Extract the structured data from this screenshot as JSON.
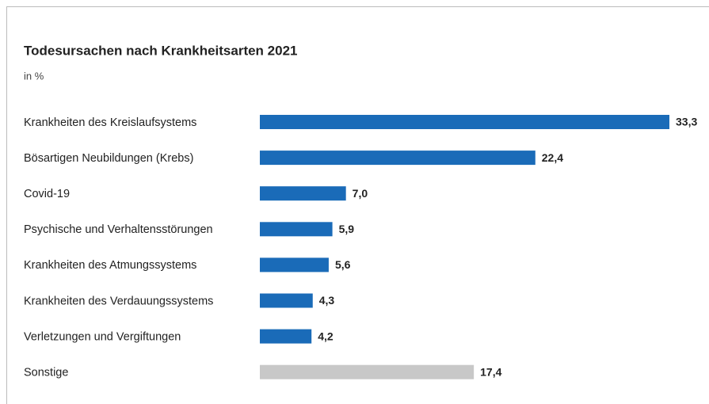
{
  "chart_data": {
    "type": "bar",
    "orientation": "horizontal",
    "title": "Todesursachen nach Krankheitsarten 2021",
    "subtitle": "in %",
    "categories": [
      "Krankheiten des Kreislaufsystems",
      "Bösartigen Neubildungen (Krebs)",
      "Covid-19",
      "Psychische und Verhaltensstörungen",
      "Krankheiten des Atmungssystems",
      "Krankheiten des Verdauungssystems",
      "Verletzungen und Vergiftungen",
      "Sonstige"
    ],
    "values": [
      33.3,
      22.4,
      7.0,
      5.9,
      5.6,
      4.3,
      4.2,
      17.4
    ],
    "value_labels": [
      "33,3",
      "22,4",
      "7,0",
      "5,9",
      "5,6",
      "4,3",
      "4,2",
      "17,4"
    ],
    "colors": [
      "#1a6bb8",
      "#1a6bb8",
      "#1a6bb8",
      "#1a6bb8",
      "#1a6bb8",
      "#1a6bb8",
      "#1a6bb8",
      "#c8c8c8"
    ]
  }
}
